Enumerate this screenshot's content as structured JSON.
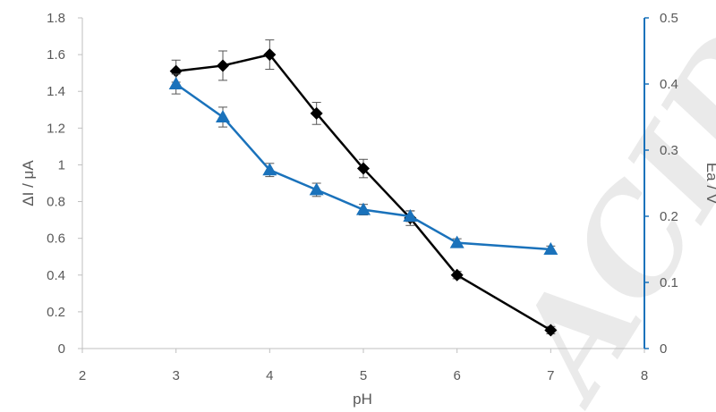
{
  "chart_data": {
    "type": "line",
    "xlabel": "pH",
    "ylabel_left": "ΔI / μA",
    "ylabel_right": "Ea / V",
    "xlim": [
      2,
      8
    ],
    "ylim_left": [
      0,
      1.8
    ],
    "ylim_right": [
      0,
      0.5
    ],
    "x_ticks": [
      "2",
      "3",
      "4",
      "5",
      "6",
      "7",
      "8"
    ],
    "y_left_ticks": [
      "0",
      "0.2",
      "0.4",
      "0.6",
      "0.8",
      "1",
      "1.2",
      "1.4",
      "1.6",
      "1.8"
    ],
    "y_right_ticks": [
      "0",
      "0.1",
      "0.2",
      "0.3",
      "0.4",
      "0.5"
    ],
    "grid": false,
    "legend": "none",
    "series": [
      {
        "axis": "left",
        "marker": "diamond",
        "color": "#000000",
        "x": [
          3,
          3.5,
          4,
          4.5,
          5,
          5.5,
          6,
          7
        ],
        "y": [
          1.51,
          1.54,
          1.6,
          1.28,
          0.98,
          0.71,
          0.4,
          0.1
        ],
        "err": [
          0.06,
          0.08,
          0.08,
          0.06,
          0.05,
          0.04,
          0.02,
          0.02
        ]
      },
      {
        "axis": "right",
        "marker": "triangle",
        "color": "#1a72bb",
        "x": [
          3,
          3.5,
          4,
          4.5,
          5,
          5.5,
          6,
          7
        ],
        "y": [
          0.4,
          0.35,
          0.27,
          0.24,
          0.21,
          0.2,
          0.16,
          0.15
        ],
        "err": [
          0.015,
          0.015,
          0.01,
          0.01,
          0.008,
          0.008,
          0.006,
          0.005
        ]
      }
    ]
  },
  "watermark": {
    "text": "ACID"
  },
  "colors": {
    "axis_left": "#bfbfbf",
    "axis_right": "#1a72bb",
    "tick_text": "#595959"
  }
}
